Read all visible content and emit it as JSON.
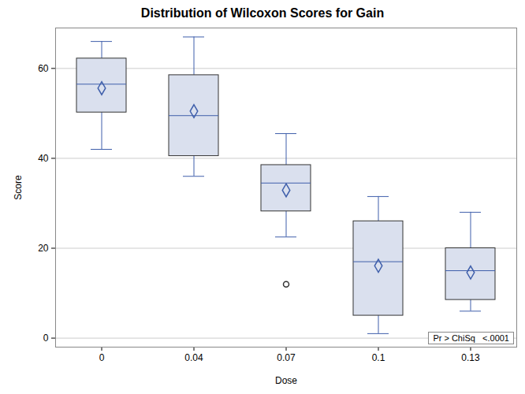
{
  "chart_data": {
    "type": "box",
    "title": "Distribution of Wilcoxon Scores for Gain",
    "x_label": "Dose",
    "y_label": "Score",
    "categories": [
      "0",
      "0.04",
      "0.07",
      "0.1",
      "0.13"
    ],
    "min": [
      42,
      36,
      22.5,
      1,
      6
    ],
    "q1": [
      50.2,
      40.5,
      28.2,
      5,
      8.5
    ],
    "median": [
      56.5,
      49.5,
      34.5,
      17,
      15
    ],
    "q3": [
      62.2,
      58.5,
      38.5,
      26,
      20
    ],
    "max": [
      66,
      67,
      45.5,
      31.5,
      28
    ],
    "mean": [
      55.6,
      50.5,
      32.9,
      16.1,
      14.6
    ],
    "outliers": [
      [],
      [],
      [
        12
      ],
      [],
      []
    ],
    "color": "#dae0ee",
    "ylim": [
      -2,
      69
    ],
    "yticks": [
      0,
      20,
      40,
      60
    ],
    "grid": true,
    "annotation": "Pr > ChiSq   <.0001"
  }
}
